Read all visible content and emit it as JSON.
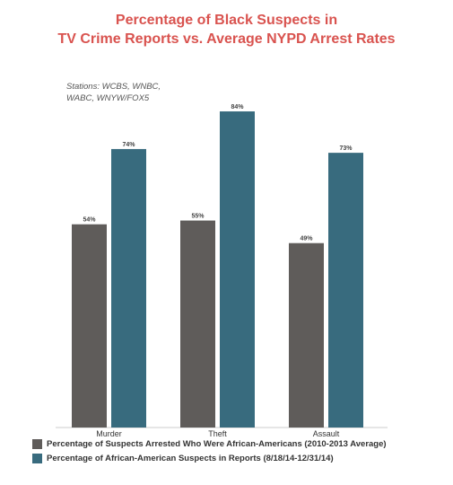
{
  "title_line1": "Percentage of Black Suspects in",
  "title_line2": "TV Crime Reports vs. Average NYPD Arrest Rates",
  "subtitle_line1": "Stations: WCBS, WNBC,",
  "subtitle_line2": "WABC, WNYW/FOX5",
  "colors": {
    "title": "#d9534f",
    "arrests": "#5f5c5a",
    "reports": "#386b7e"
  },
  "chart_data": {
    "type": "bar",
    "title": "Percentage of Black Suspects in TV Crime Reports vs. Average NYPD Arrest Rates",
    "xlabel": "",
    "ylabel": "",
    "ylim": [
      0,
      100
    ],
    "grid": false,
    "legend_position": "bottom-left",
    "categories": [
      "Murder",
      "Theft",
      "Assault"
    ],
    "series": [
      {
        "name": "Percentage of Suspects Arrested Who Were African-Americans (2010-2013 Average)",
        "values": [
          54,
          55,
          49
        ],
        "labels": [
          "54%",
          "55%",
          "49%"
        ],
        "color": "#5f5c5a"
      },
      {
        "name": "Percentage of African-American Suspects in Reports (8/18/14-12/31/14)",
        "values": [
          74,
          84,
          73
        ],
        "labels": [
          "74%",
          "84%",
          "73%"
        ],
        "color": "#386b7e"
      }
    ]
  }
}
